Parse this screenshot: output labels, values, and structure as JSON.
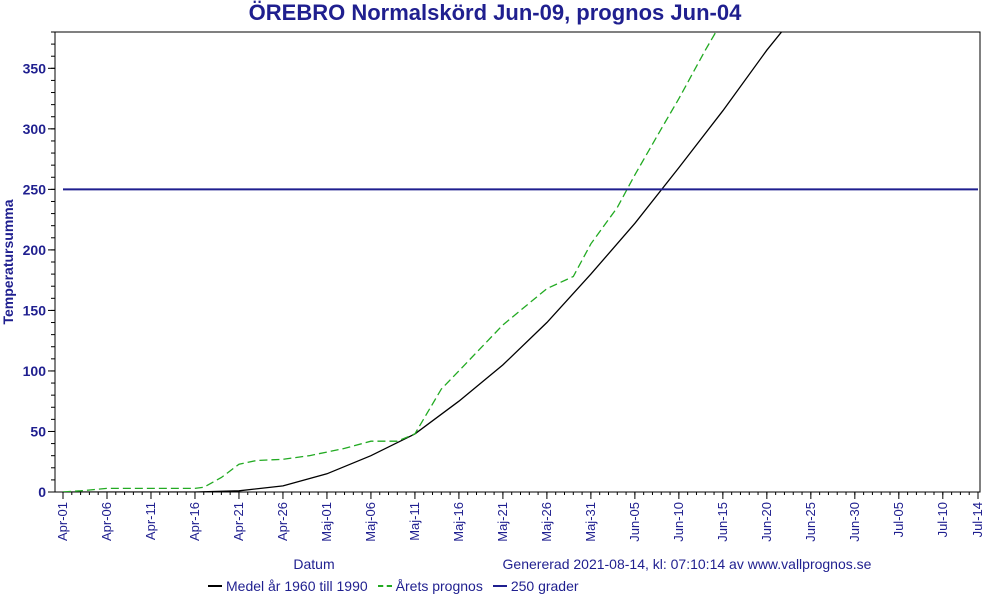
{
  "chart_data": {
    "type": "line",
    "title": "ÖREBRO Normalskörd Jun-09, prognos Jun-04",
    "xlabel": "Datum",
    "ylabel": "Temperatursumma",
    "ylim": [
      0,
      380
    ],
    "y_ticks": [
      0,
      50,
      100,
      150,
      200,
      250,
      300,
      350
    ],
    "x_ticks": [
      "Apr-01",
      "Apr-06",
      "Apr-11",
      "Apr-16",
      "Apr-21",
      "Apr-26",
      "Maj-01",
      "Maj-06",
      "Maj-11",
      "Maj-16",
      "Maj-21",
      "Maj-26",
      "Maj-31",
      "Jun-05",
      "Jun-10",
      "Jun-15",
      "Jun-20",
      "Jun-25",
      "Jun-30",
      "Jul-05",
      "Jul-10",
      "Jul-14"
    ],
    "grid": false,
    "legend_position": "bottom",
    "generated_text": "Genererad 2021-08-14, kl: 07:10:14 av www.vallprognos.se",
    "series": [
      {
        "name": "Medel år 1960 till 1990",
        "color": "#000000",
        "style": "solid",
        "x": [
          "Apr-01",
          "Apr-16",
          "Apr-21",
          "Apr-26",
          "Maj-01",
          "Maj-06",
          "Maj-11",
          "Maj-16",
          "Maj-21",
          "Maj-26",
          "Maj-31",
          "Jun-05",
          "Jun-10",
          "Jun-15",
          "Jun-20",
          "Jun-25"
        ],
        "values": [
          0,
          0,
          1,
          5,
          15,
          30,
          48,
          75,
          105,
          140,
          180,
          222,
          268,
          315,
          365,
          410
        ]
      },
      {
        "name": "Årets prognos",
        "color": "#22aa22",
        "style": "dashed",
        "x": [
          "Apr-01",
          "Apr-03",
          "Apr-06",
          "Apr-16",
          "Apr-17",
          "Apr-19",
          "Apr-21",
          "Apr-23",
          "Apr-26",
          "Apr-29",
          "May-03",
          "Maj-06",
          "Maj-09",
          "Maj-11",
          "Maj-14",
          "Maj-16",
          "Maj-21",
          "Maj-26",
          "Maj-29",
          "Maj-31",
          "Jun-03",
          "Jun-05",
          "Jun-08",
          "Jun-10",
          "Jun-13",
          "Jun-15"
        ],
        "values": [
          0,
          1,
          3,
          3,
          4,
          12,
          23,
          26,
          27,
          30,
          36,
          42,
          42,
          48,
          85,
          100,
          138,
          168,
          178,
          205,
          235,
          262,
          300,
          325,
          365,
          390
        ]
      },
      {
        "name": "250 grader",
        "color": "#1f1f8f",
        "style": "solid",
        "x": [
          "Apr-01",
          "Jul-14"
        ],
        "values": [
          250,
          250
        ]
      }
    ]
  }
}
